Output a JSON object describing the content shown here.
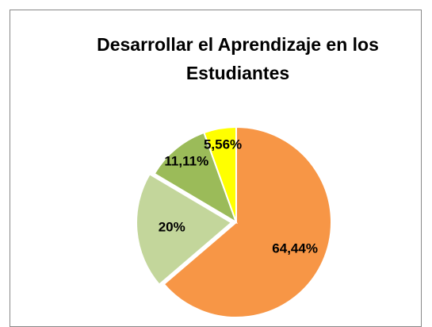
{
  "chart_data": {
    "type": "pie",
    "title": "Desarrollar el Aprendizaje en los Estudiantes",
    "values": [
      64.44,
      20,
      11.11,
      5.56
    ],
    "value_labels": [
      "64,44%",
      "20%",
      "11,11%",
      "5,56%"
    ],
    "colors": [
      "#f79646",
      "#c3d69b",
      "#9bbb59",
      "#ffff00"
    ]
  }
}
